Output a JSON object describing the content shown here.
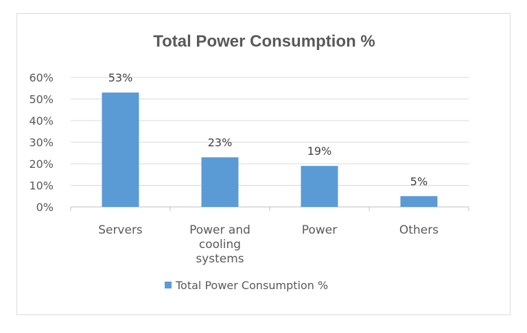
{
  "chart_data": {
    "type": "bar",
    "title": "Total Power Consumption %",
    "categories": [
      [
        "Servers"
      ],
      [
        "Power and",
        "cooling",
        "systems"
      ],
      [
        "Power"
      ],
      [
        "Others"
      ]
    ],
    "series": [
      {
        "name": "Total Power Consumption %",
        "values": [
          53,
          23,
          19,
          5
        ],
        "labels": [
          "53%",
          "23%",
          "19%",
          "5%"
        ],
        "color": "#5b9bd5"
      }
    ],
    "yticks": [
      "0%",
      "10%",
      "20%",
      "30%",
      "40%",
      "50%",
      "60%"
    ],
    "ylim": [
      0,
      60
    ],
    "grid": true,
    "legend": "bottom"
  }
}
